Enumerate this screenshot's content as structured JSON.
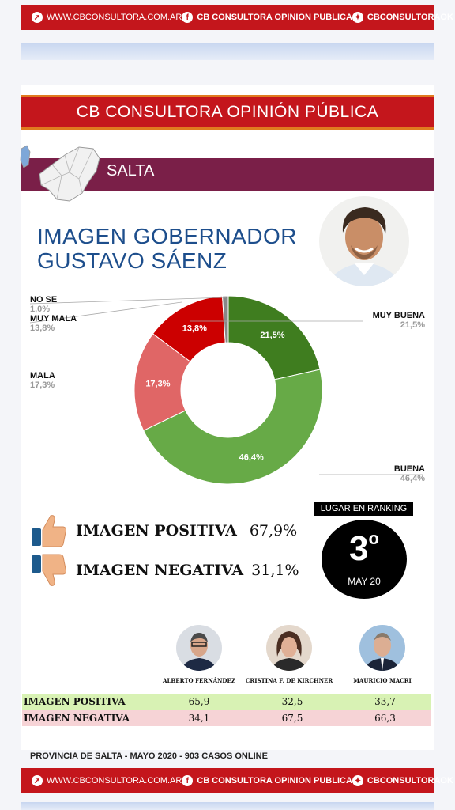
{
  "top_banner": {
    "website": "WWW.CBCONSULTORA.COM.AR",
    "facebook": "CB CONSULTORA OPINION PUBLICA",
    "twitter": "CBCONSULTORAOK"
  },
  "title": "CB CONSULTORA OPINIÓN PÚBLICA",
  "province": "SALTA",
  "heading": {
    "line1": "IMAGEN GOBERNADOR",
    "line2": "GUSTAVO SÁENZ"
  },
  "chart_data": {
    "type": "pie",
    "variant": "donut",
    "slices": [
      {
        "label": "MUY BUENA",
        "value": 21.5,
        "display": "21,5%",
        "color": "#3f7d1f"
      },
      {
        "label": "BUENA",
        "value": 46.4,
        "display": "46,4%",
        "color": "#67aa47"
      },
      {
        "label": "MALA",
        "value": 17.3,
        "display": "17,3%",
        "color": "#e06666"
      },
      {
        "label": "MUY MALA",
        "value": 13.8,
        "display": "13,8%",
        "color": "#cc0000"
      },
      {
        "label": "NO SE",
        "value": 1.0,
        "display": "1,0%",
        "color": "#888888"
      }
    ]
  },
  "image_summary": {
    "positive_label": "IMAGEN POSITIVA",
    "positive_value": "67,9%",
    "negative_label": "IMAGEN NEGATIVA",
    "negative_value": "31,1%"
  },
  "ranking": {
    "label": "LUGAR EN RANKING",
    "position": "3",
    "superscript": "o",
    "date": "MAY 20"
  },
  "comparison": {
    "politicians": [
      "ALBERTO FERNÁNDEZ",
      "CRISTINA F. DE KIRCHNER",
      "MAURICIO MACRI"
    ],
    "rows": [
      {
        "label": "IMAGEN POSITIVA",
        "values": [
          "65,9",
          "32,5",
          "33,7"
        ]
      },
      {
        "label": "IMAGEN NEGATIVA",
        "values": [
          "34,1",
          "67,5",
          "66,3"
        ]
      }
    ]
  },
  "footer_note": "PROVINCIA DE SALTA - MAYO 2020 -  903 CASOS ONLINE",
  "bottom_banner": {
    "website": "WWW.CBCONSULTORA.COM.AR",
    "facebook": "CB CONSULTORA OPINION PUBLICA",
    "twitter": "CBCONSULTORAOK"
  }
}
